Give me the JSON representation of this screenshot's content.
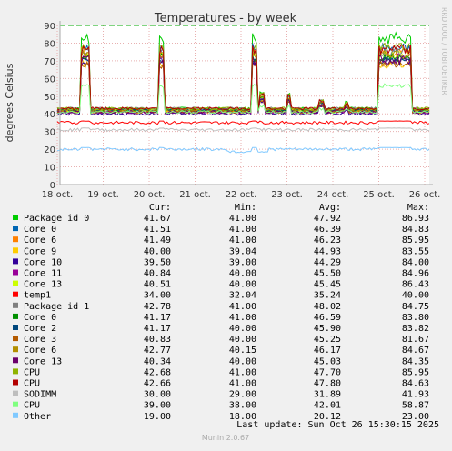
{
  "chart_data": {
    "type": "line",
    "title": "Temperatures - by week",
    "ylabel": "degrees Celsius",
    "xlabel": "",
    "ylim": [
      0,
      90
    ],
    "yticks": [
      0,
      10,
      20,
      30,
      40,
      50,
      60,
      70,
      80,
      90
    ],
    "xticks": [
      "18 oct.",
      "19 oct.",
      "20 oct.",
      "21 oct.",
      "22 oct.",
      "23 oct.",
      "24 oct.",
      "25 oct.",
      "26 oct."
    ],
    "warning_level": 90,
    "side_label": "RRDTOOL / TOBI OETIKER",
    "footer": "Munin 2.0.67",
    "last_update": "Last update: Sun Oct 26 15:30:15 2025",
    "legend_headers": {
      "cur": "Cur:",
      "min": "Min:",
      "avg": "Avg:",
      "max": "Max:"
    },
    "series": [
      {
        "name": "Package id 0",
        "color": "#00cc00",
        "cur": "41.67",
        "min": "41.00",
        "avg": "47.92",
        "max": "86.93",
        "base": 43,
        "peak": 86
      },
      {
        "name": "Core 0",
        "color": "#0066b3",
        "cur": "41.51",
        "min": "41.00",
        "avg": "46.39",
        "max": "84.83",
        "base": 42,
        "peak": 80
      },
      {
        "name": "Core 6",
        "color": "#ff8000",
        "cur": "41.49",
        "min": "41.00",
        "avg": "46.23",
        "max": "85.95",
        "base": 42,
        "peak": 78
      },
      {
        "name": "Core 9",
        "color": "#ffcc00",
        "cur": "40.00",
        "min": "39.04",
        "avg": "44.93",
        "max": "83.55",
        "base": 41,
        "peak": 70
      },
      {
        "name": "Core 10",
        "color": "#330099",
        "cur": "39.50",
        "min": "39.00",
        "avg": "44.29",
        "max": "84.00",
        "base": 40,
        "peak": 72
      },
      {
        "name": "Core 11",
        "color": "#990099",
        "cur": "40.84",
        "min": "40.00",
        "avg": "45.50",
        "max": "84.96",
        "base": 41,
        "peak": 74
      },
      {
        "name": "Core 13",
        "color": "#ccff00",
        "cur": "40.51",
        "min": "40.00",
        "avg": "45.45",
        "max": "86.43",
        "base": 42,
        "peak": 76
      },
      {
        "name": "temp1",
        "color": "#ff0000",
        "cur": "34.00",
        "min": "32.04",
        "avg": "35.24",
        "max": "40.00",
        "base": 35,
        "peak": 36
      },
      {
        "name": "Package id 1",
        "color": "#808080",
        "cur": "42.78",
        "min": "41.00",
        "avg": "48.02",
        "max": "84.75",
        "base": 43,
        "peak": 78
      },
      {
        "name": "Core 0",
        "color": "#008f00",
        "cur": "41.17",
        "min": "41.00",
        "avg": "46.59",
        "max": "83.80",
        "base": 42,
        "peak": 74
      },
      {
        "name": "Core 2",
        "color": "#00487d",
        "cur": "41.17",
        "min": "40.00",
        "avg": "45.90",
        "max": "83.82",
        "base": 42,
        "peak": 72
      },
      {
        "name": "Core 3",
        "color": "#b35a00",
        "cur": "40.83",
        "min": "40.00",
        "avg": "45.25",
        "max": "81.67",
        "base": 41,
        "peak": 70
      },
      {
        "name": "Core 6",
        "color": "#b38f00",
        "cur": "42.77",
        "min": "40.15",
        "avg": "46.17",
        "max": "84.67",
        "base": 42,
        "peak": 76
      },
      {
        "name": "Core 13",
        "color": "#6b006b",
        "cur": "40.34",
        "avg": "45.03",
        "min": "40.00",
        "max": "84.35",
        "base": 41,
        "peak": 73
      },
      {
        "name": "CPU",
        "color": "#8fb300",
        "cur": "42.68",
        "min": "41.00",
        "avg": "47.70",
        "max": "85.95",
        "base": 43,
        "peak": 80
      },
      {
        "name": "CPU",
        "color": "#b30000",
        "cur": "42.66",
        "min": "41.00",
        "avg": "47.80",
        "max": "84.63",
        "base": 43,
        "peak": 79
      },
      {
        "name": "SODIMM",
        "color": "#bebebe",
        "cur": "30.00",
        "min": "29.00",
        "avg": "31.89",
        "max": "41.93",
        "base": 31,
        "peak": 32
      },
      {
        "name": "CPU",
        "color": "#80ff80",
        "cur": "39.00",
        "min": "38.00",
        "avg": "42.01",
        "max": "58.87",
        "base": 41,
        "peak": 57
      },
      {
        "name": "Other",
        "color": "#80c9ff",
        "cur": "19.00",
        "min": "18.00",
        "avg": "20.12",
        "max": "23.00",
        "base": 20,
        "peak": 21
      }
    ]
  }
}
